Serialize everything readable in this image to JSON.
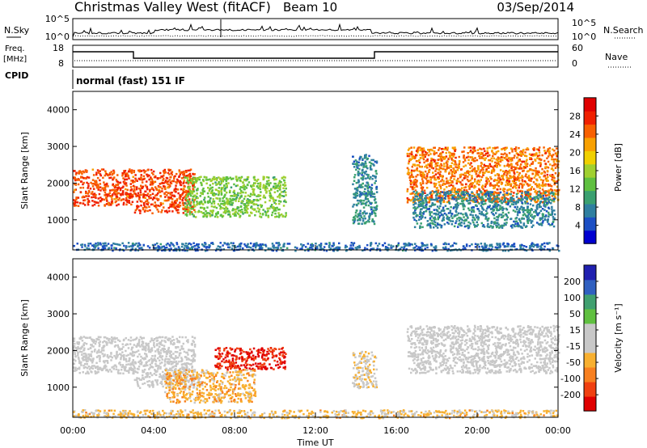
{
  "header": {
    "station": "Christmas Valley West (fitACF)",
    "beam": "Beam 10",
    "date": "03/Sep/2014"
  },
  "noise_panel": {
    "left_label": "N.Sky",
    "right_label": "N.Search",
    "left_ticks": [
      "10^5",
      "10^0"
    ],
    "right_ticks": [
      "10^5",
      "10^0"
    ]
  },
  "freq_panel": {
    "left_label_1": "Freq.",
    "left_label_2": "[MHz]",
    "right_label": "Nave",
    "left_ticks": [
      "18",
      "8"
    ],
    "right_ticks": [
      "60",
      "0"
    ]
  },
  "cpid": {
    "label": "CPID",
    "value": "normal (fast) 151 IF"
  },
  "colors": {
    "power_scale": [
      "#0000d0",
      "#1c4fc4",
      "#2f7fa0",
      "#3aa070",
      "#5fc040",
      "#a0d030",
      "#f0d000",
      "#f8a000",
      "#f86000",
      "#f02000",
      "#e00000"
    ],
    "velocity_scale": [
      "#e00000",
      "#f04010",
      "#f88020",
      "#f8b030",
      "#c8c8c8",
      "#c8c8c8",
      "#60c040",
      "#40a070",
      "#3060c0",
      "#2020b0"
    ]
  },
  "chart_data": [
    {
      "type": "heatmap",
      "parameter": "Power",
      "ylabel": "Slant Range [km]",
      "ylim": [
        180,
        4500
      ],
      "y_ticks": [
        "1000",
        "2000",
        "3000",
        "4000"
      ],
      "colorbar_label": "Power [dB]",
      "colorbar_ticks": [
        "4",
        "8",
        "12",
        "16",
        "20",
        "24",
        "28"
      ],
      "colorbar_range": [
        0,
        32
      ],
      "features": [
        {
          "t_start": 0.0,
          "t_end": 3.0,
          "range_start": 1400,
          "range_end": 2400,
          "value": 26
        },
        {
          "t_start": 3.0,
          "t_end": 6.0,
          "range_start": 1200,
          "range_end": 2400,
          "value": 26
        },
        {
          "t_start": 5.5,
          "t_end": 10.5,
          "range_start": 1100,
          "range_end": 2200,
          "value": 14
        },
        {
          "t_start": 13.8,
          "t_end": 15.0,
          "range_start": 900,
          "range_end": 2800,
          "value": 8
        },
        {
          "t_start": 16.5,
          "t_end": 24.0,
          "range_start": 1500,
          "range_end": 3000,
          "value": 24
        },
        {
          "t_start": 16.8,
          "t_end": 23.8,
          "range_start": 800,
          "range_end": 1800,
          "value": 8
        },
        {
          "t_start": 0.0,
          "t_end": 24.0,
          "range_start": 180,
          "range_end": 400,
          "value": 6
        }
      ]
    },
    {
      "type": "heatmap",
      "parameter": "Velocity",
      "ylabel": "Slant Range [km]",
      "xlabel": "Time UT",
      "x_ticks": [
        "00:00",
        "04:00",
        "08:00",
        "12:00",
        "16:00",
        "20:00",
        "00:00"
      ],
      "xlim_hours": [
        0,
        24
      ],
      "ylim": [
        180,
        4500
      ],
      "y_ticks": [
        "1000",
        "2000",
        "3000",
        "4000"
      ],
      "colorbar_label": "Velocity [m s⁻¹]",
      "colorbar_ticks": [
        "200",
        "100",
        "50",
        "15",
        "-15",
        "-50",
        "-100",
        "-200"
      ],
      "colorbar_range": [
        -250,
        250
      ],
      "features": [
        {
          "t_start": 0.0,
          "t_end": 3.0,
          "range_start": 1400,
          "range_end": 2400,
          "value": 0
        },
        {
          "t_start": 3.0,
          "t_end": 6.0,
          "range_start": 1000,
          "range_end": 2400,
          "value": 0
        },
        {
          "t_start": 7.0,
          "t_end": 10.5,
          "range_start": 1500,
          "range_end": 2100,
          "value": -200
        },
        {
          "t_start": 4.5,
          "t_end": 9.0,
          "range_start": 600,
          "range_end": 1500,
          "value": -80
        },
        {
          "t_start": 13.8,
          "t_end": 15.0,
          "range_start": 1000,
          "range_end": 2000,
          "value": -40
        },
        {
          "t_start": 16.5,
          "t_end": 24.0,
          "range_start": 1400,
          "range_end": 2700,
          "value": 0
        },
        {
          "t_start": 0.0,
          "t_end": 24.0,
          "range_start": 180,
          "range_end": 400,
          "value": -60
        }
      ]
    }
  ]
}
